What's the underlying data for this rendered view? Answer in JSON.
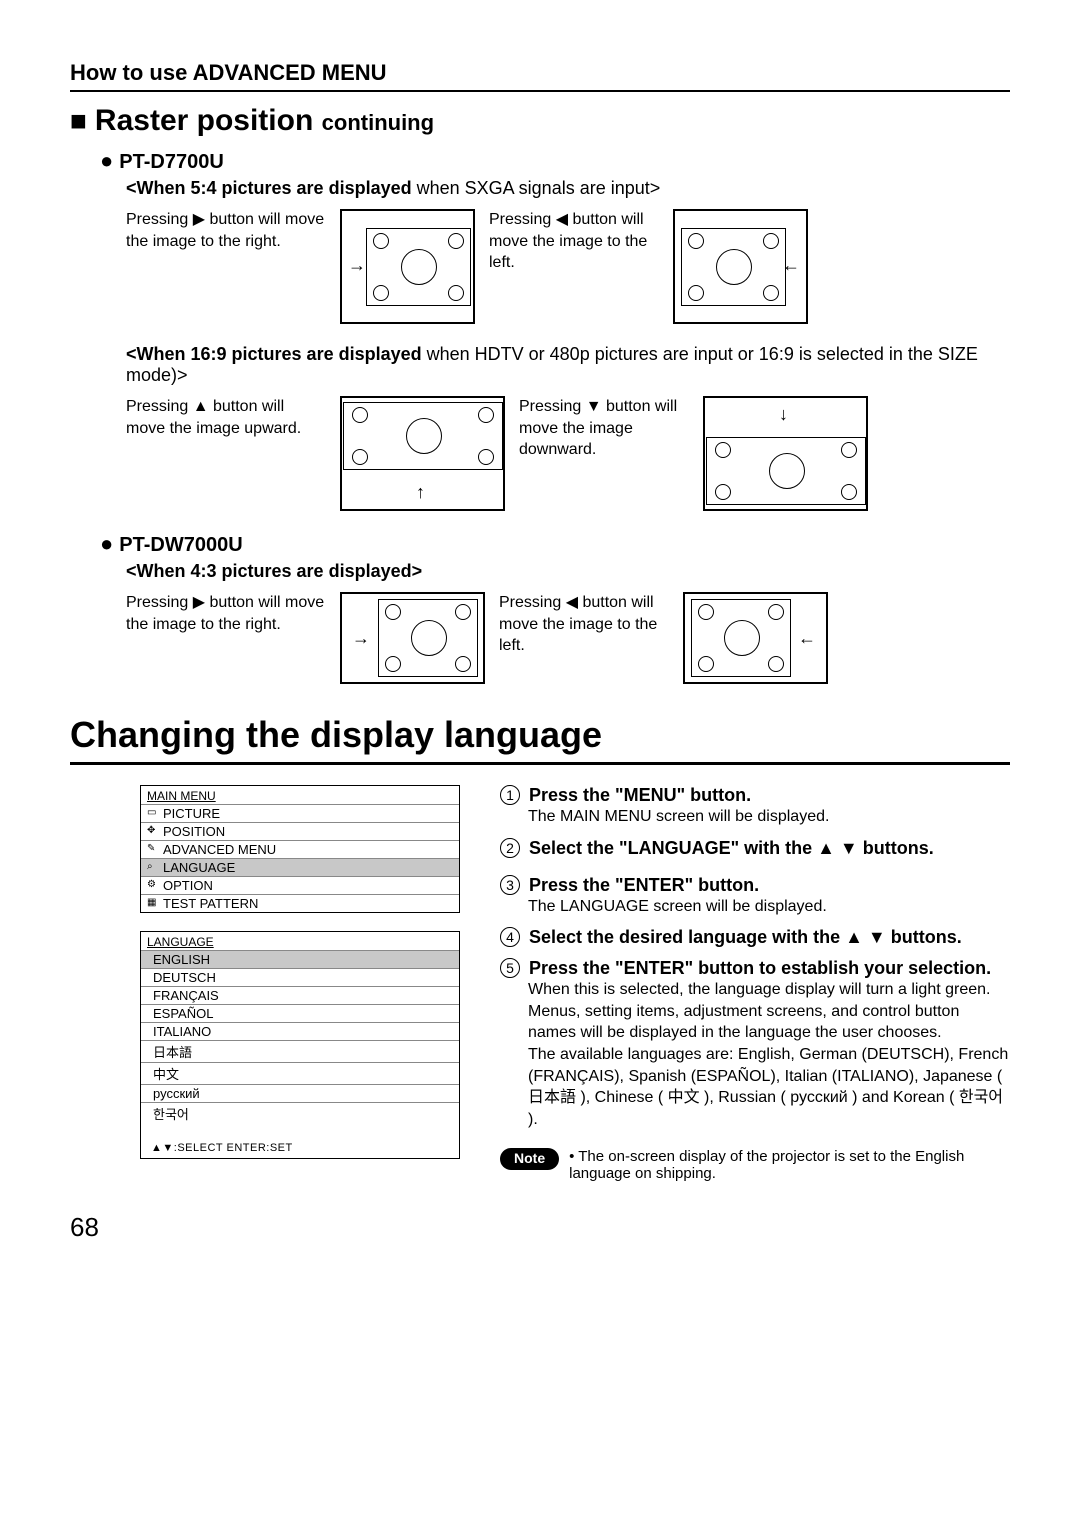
{
  "header": "How to use ADVANCED MENU",
  "section1": {
    "title_sq": "■",
    "title": "Raster position",
    "cont": "continuing"
  },
  "model1": {
    "dot": "●",
    "name": "PT-D7700U",
    "cond1_bold": "<When 5:4 pictures are displayed",
    "cond1_light": " when SXGA signals are input>",
    "r1_left": "Pressing ▶ button will move the image to the right.",
    "r1_right": "Pressing ◀ button will move the image to the left.",
    "cond2_bold": "<When 16:9 pictures are displayed",
    "cond2_light": " when HDTV or 480p pictures are input or 16:9 is selected in the SIZE mode)>",
    "r2_left": "Pressing ▲ button will move the image upward.",
    "r2_right": "Pressing ▼ button will move the image downward."
  },
  "model2": {
    "dot": "●",
    "name": "PT-DW7000U",
    "cond": "<When 4:3 pictures are displayed>",
    "r_left": "Pressing ▶ button will move the image to the right.",
    "r_right": "Pressing ◀ button will move the image to the left."
  },
  "big_title": "Changing the display language",
  "main_menu": {
    "title": "MAIN MENU",
    "items": [
      {
        "icon": "▭",
        "label": "PICTURE",
        "sel": false
      },
      {
        "icon": "✥",
        "label": "POSITION",
        "sel": false
      },
      {
        "icon": "✎",
        "label": "ADVANCED MENU",
        "sel": false
      },
      {
        "icon": "⌕",
        "label": "LANGUAGE",
        "sel": true
      },
      {
        "icon": "⚙",
        "label": "OPTION",
        "sel": false
      },
      {
        "icon": "▦",
        "label": "TEST PATTERN",
        "sel": false
      }
    ]
  },
  "lang_menu": {
    "title": "LANGUAGE",
    "items": [
      {
        "label": "ENGLISH",
        "sel": true
      },
      {
        "label": "DEUTSCH",
        "sel": false
      },
      {
        "label": "FRANÇAIS",
        "sel": false
      },
      {
        "label": "ESPAÑOL",
        "sel": false
      },
      {
        "label": "ITALIANO",
        "sel": false
      },
      {
        "label": "日本語",
        "sel": false
      },
      {
        "label": "中文",
        "sel": false
      },
      {
        "label": "русский",
        "sel": false
      },
      {
        "label": "한국어",
        "sel": false
      }
    ],
    "footer": "▲▼:SELECT   ENTER:SET"
  },
  "steps": {
    "s1b": "Press the \"MENU\" button.",
    "s1s": "The MAIN MENU screen will be displayed.",
    "s2b": "Select the \"LANGUAGE\" with the ▲ ▼ buttons.",
    "s3b": "Press the \"ENTER\" button.",
    "s3s": "The LANGUAGE screen will be displayed.",
    "s4b": "Select the desired language with the ▲ ▼ buttons.",
    "s5b": "Press the \"ENTER\" button to establish your selection.",
    "s5s": "When this is selected, the language display will turn a light green.\nMenus, setting items, adjustment screens, and control button names will be displayed in the language the user chooses.\nThe available languages are: English, German (DEUTSCH), French (FRANÇAIS), Spanish (ESPAÑOL), Italian (ITALIANO), Japanese ( 日本語 ), Chinese ( 中文 ), Russian ( русский ) and Korean ( 한국어 )."
  },
  "note": {
    "label": "Note",
    "text": "• The on-screen display of the projector is set to the English language on shipping."
  },
  "pagenum": "68"
}
